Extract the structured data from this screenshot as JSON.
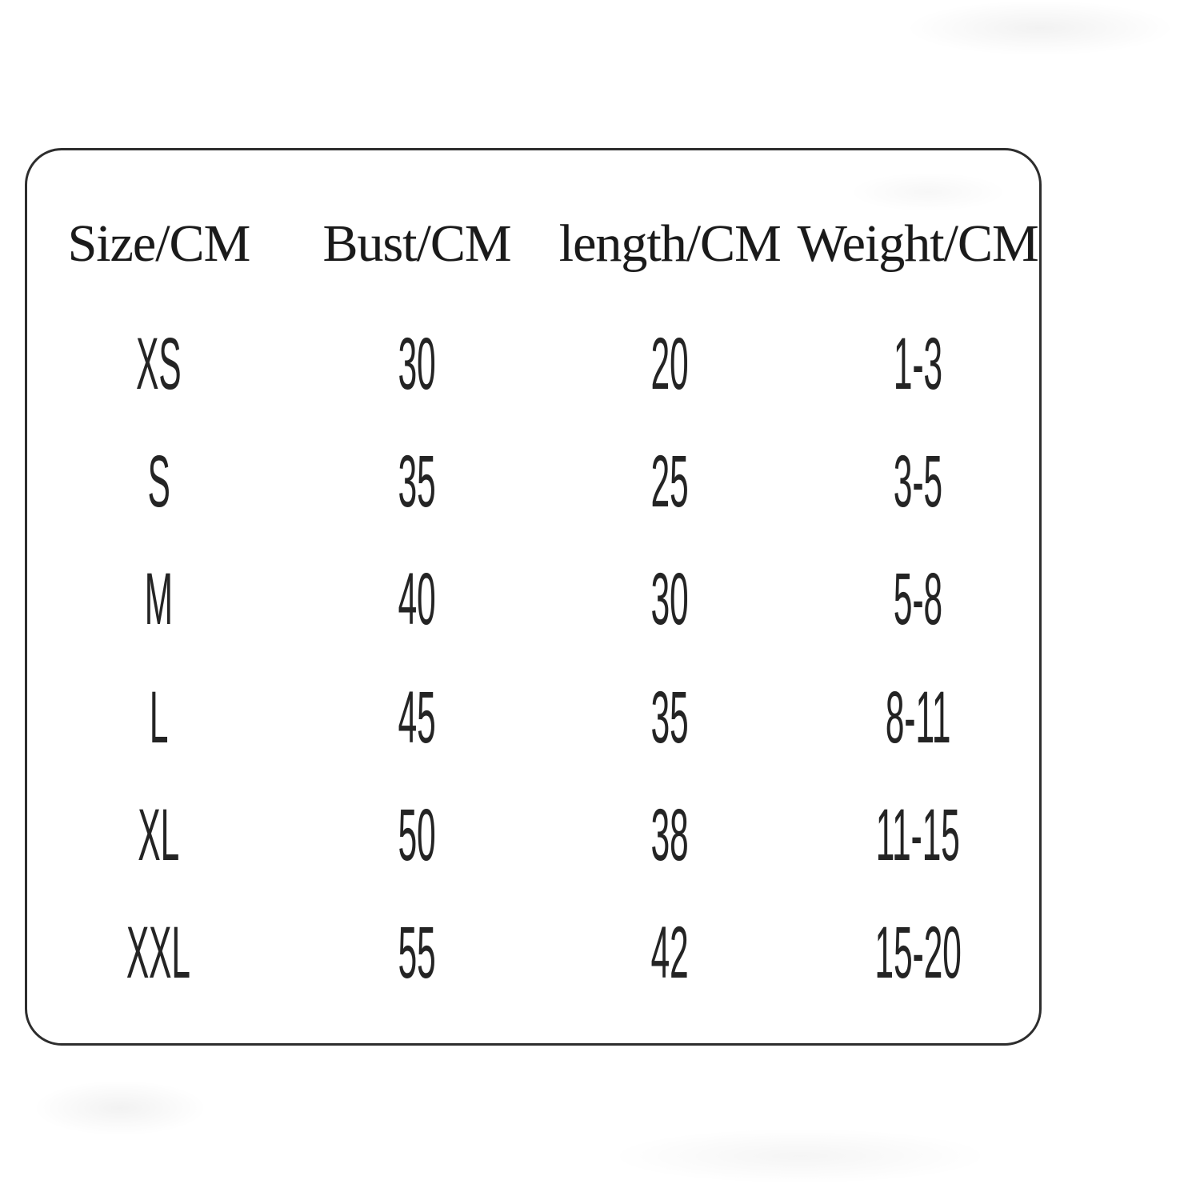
{
  "colors": {
    "background": "#ffffff",
    "border": "#2d2d2d",
    "text": "#242424"
  },
  "table": {
    "headers": [
      {
        "id": "size",
        "label": "Size/CM"
      },
      {
        "id": "bust",
        "label": "Bust/CM"
      },
      {
        "id": "length",
        "label": "length/CM"
      },
      {
        "id": "weight",
        "label": "Weight/CM"
      }
    ],
    "rows": [
      {
        "size": "XS",
        "bust": "30",
        "length": "20",
        "weight": "1-3"
      },
      {
        "size": "S",
        "bust": "35",
        "length": "25",
        "weight": "3-5"
      },
      {
        "size": "M",
        "bust": "40",
        "length": "30",
        "weight": "5-8"
      },
      {
        "size": "L",
        "bust": "45",
        "length": "35",
        "weight": "8-11"
      },
      {
        "size": "XL",
        "bust": "50",
        "length": "38",
        "weight": "11-15"
      },
      {
        "size": "XXL",
        "bust": "55",
        "length": "42",
        "weight": "15-20"
      }
    ]
  },
  "chart_data": {
    "type": "table",
    "columns": [
      "Size/CM",
      "Bust/CM",
      "length/CM",
      "Weight/CM"
    ],
    "rows": [
      [
        "XS",
        30,
        20,
        "1-3"
      ],
      [
        "S",
        35,
        25,
        "3-5"
      ],
      [
        "M",
        40,
        30,
        "5-8"
      ],
      [
        "L",
        45,
        35,
        "8-11"
      ],
      [
        "XL",
        50,
        38,
        "11-15"
      ],
      [
        "XXL",
        55,
        42,
        "15-20"
      ]
    ]
  }
}
